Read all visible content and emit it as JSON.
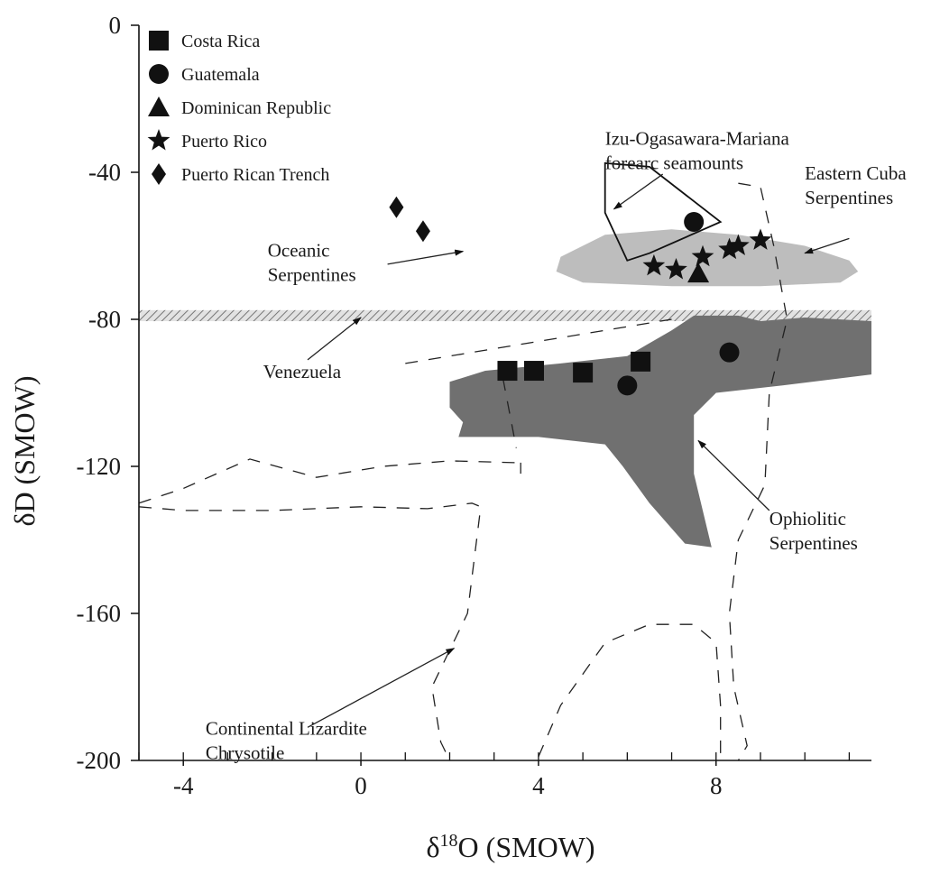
{
  "chart_data": {
    "type": "scatter",
    "title": "",
    "xlabel": {
      "prefix": "δ",
      "sup": "18",
      "suffix": "O (SMOW)"
    },
    "ylabel": "δD (SMOW)",
    "xlim": [
      -5,
      11.5
    ],
    "ylim": [
      -200,
      0
    ],
    "xticks": [
      -4,
      0,
      4,
      8
    ],
    "yticks": [
      0,
      -40,
      -80,
      -120,
      -160,
      -200
    ],
    "legend_position": "top-left",
    "series": [
      {
        "name": "Costa Rica",
        "marker": "square",
        "points": [
          [
            3.3,
            -94
          ],
          [
            3.9,
            -94
          ],
          [
            5.0,
            -94.5
          ],
          [
            6.3,
            -91.5
          ]
        ]
      },
      {
        "name": "Guatemala",
        "marker": "circle",
        "points": [
          [
            7.5,
            -53.5
          ],
          [
            6.0,
            -98
          ],
          [
            8.3,
            -89
          ]
        ]
      },
      {
        "name": "Dominican Republic",
        "marker": "triangle",
        "points": [
          [
            7.6,
            -67.5
          ]
        ]
      },
      {
        "name": "Puerto Rico",
        "marker": "star",
        "points": [
          [
            6.6,
            -65.5
          ],
          [
            7.1,
            -66.5
          ],
          [
            7.7,
            -63
          ],
          [
            8.3,
            -61
          ],
          [
            8.5,
            -60
          ],
          [
            9.0,
            -58.5
          ]
        ]
      },
      {
        "name": "Puerto Rican Trench",
        "marker": "diamond",
        "points": [
          [
            0.8,
            -49.5
          ],
          [
            1.4,
            -56
          ]
        ]
      }
    ],
    "fields": {
      "eastern_cuba": {
        "fill": "#bdbdbd",
        "points": [
          [
            4.5,
            -63
          ],
          [
            5.5,
            -57
          ],
          [
            7.0,
            -55.5
          ],
          [
            8.5,
            -57
          ],
          [
            10.0,
            -60
          ],
          [
            11.0,
            -64
          ],
          [
            11.2,
            -67
          ],
          [
            10.8,
            -70
          ],
          [
            9.0,
            -71
          ],
          [
            7.0,
            -71
          ],
          [
            5.0,
            -70
          ],
          [
            4.4,
            -67
          ]
        ]
      },
      "ophiolitic": {
        "fill": "#707070",
        "points": [
          [
            2.0,
            -97
          ],
          [
            2.8,
            -94
          ],
          [
            4.5,
            -92
          ],
          [
            6.0,
            -90
          ],
          [
            7.0,
            -83
          ],
          [
            7.5,
            -79
          ],
          [
            8.5,
            -79
          ],
          [
            9.0,
            -80.5
          ],
          [
            10.0,
            -79.5
          ],
          [
            11.5,
            -80.5
          ],
          [
            11.5,
            -95
          ],
          [
            9.5,
            -98
          ],
          [
            8.0,
            -100
          ],
          [
            7.5,
            -106
          ],
          [
            7.5,
            -122
          ],
          [
            7.9,
            -142
          ],
          [
            7.3,
            -141
          ],
          [
            6.5,
            -130
          ],
          [
            5.9,
            -120
          ],
          [
            5.5,
            -114
          ],
          [
            4.0,
            -112
          ],
          [
            2.2,
            -112
          ],
          [
            2.3,
            -108
          ],
          [
            2.0,
            -104
          ]
        ]
      },
      "izu_ogasawara": {
        "stroke": "#111",
        "points": [
          [
            5.5,
            -37.5
          ],
          [
            6.5,
            -38.5
          ],
          [
            8.1,
            -53.5
          ],
          [
            6.5,
            -62
          ],
          [
            6.0,
            -64
          ],
          [
            5.5,
            -51
          ],
          [
            5.5,
            -37.5
          ]
        ]
      },
      "venezuela_band": {
        "y": [
          -77.5,
          -80.5
        ]
      }
    },
    "dashed_outlines": [
      [
        [
          1.0,
          -92
        ],
        [
          7.0,
          -80
        ]
      ],
      [
        [
          3.2,
          -96
        ],
        [
          3.5,
          -115
        ]
      ],
      [
        [
          8.5,
          -43
        ],
        [
          9.0,
          -44
        ],
        [
          9.3,
          -60
        ],
        [
          9.6,
          -80
        ],
        [
          9.2,
          -100
        ],
        [
          9.1,
          -125
        ],
        [
          8.5,
          -140
        ],
        [
          8.3,
          -160
        ],
        [
          8.4,
          -180
        ],
        [
          8.7,
          -196
        ],
        [
          8.5,
          -200
        ]
      ],
      [
        [
          -5,
          -130
        ],
        [
          -4,
          -126
        ],
        [
          -2.5,
          -118
        ],
        [
          -1,
          -123
        ],
        [
          0.5,
          -120
        ],
        [
          2,
          -118.5
        ],
        [
          3.5,
          -119
        ]
      ],
      [
        [
          3.6,
          -119
        ],
        [
          3.6,
          -122
        ]
      ],
      [
        [
          -5,
          -131
        ],
        [
          -4,
          -132
        ],
        [
          -2,
          -132
        ],
        [
          0,
          -131
        ],
        [
          1.5,
          -131.5
        ],
        [
          2.5,
          -130
        ],
        [
          2.7,
          -131
        ],
        [
          2.4,
          -160
        ],
        [
          1.6,
          -180
        ],
        [
          1.8,
          -195
        ],
        [
          2.0,
          -200
        ]
      ],
      [
        [
          4.0,
          -199
        ],
        [
          4.5,
          -185
        ],
        [
          5.5,
          -168
        ],
        [
          6.5,
          -163
        ],
        [
          7.5,
          -163
        ],
        [
          8.0,
          -168
        ],
        [
          8.1,
          -185
        ],
        [
          8.1,
          -200
        ]
      ]
    ],
    "annotations": [
      {
        "lines": [
          "Izu-Ogasawara-Mariana",
          "forearc seamounts"
        ],
        "at": [
          5.5,
          -32.5
        ],
        "arrow": [
          [
            6.8,
            -40.5
          ],
          [
            5.7,
            -50
          ]
        ]
      },
      {
        "lines": [
          "Eastern Cuba",
          "Serpentines"
        ],
        "at": [
          10.0,
          -42
        ],
        "arrow": [
          [
            11.0,
            -58
          ],
          [
            10.0,
            -62
          ]
        ]
      },
      {
        "lines": [
          "Oceanic",
          "Serpentines"
        ],
        "at": [
          -2.1,
          -63
        ],
        "arrow": [
          [
            0.6,
            -65
          ],
          [
            2.3,
            -61.5
          ]
        ]
      },
      {
        "lines": [
          "Venezuela"
        ],
        "at": [
          -2.2,
          -96
        ],
        "arrow": [
          [
            -1.2,
            -91
          ],
          [
            0.0,
            -79.5
          ]
        ]
      },
      {
        "lines": [
          "Ophiolitic",
          "Serpentines"
        ],
        "at": [
          9.2,
          -136
        ],
        "arrow": [
          [
            9.2,
            -132
          ],
          [
            7.6,
            -113
          ]
        ]
      },
      {
        "lines": [
          "Continental Lizardite",
          "Chrysotile"
        ],
        "at": [
          -3.5,
          -193
        ],
        "arrow": [
          [
            -1.2,
            -191
          ],
          [
            2.1,
            -169.5
          ]
        ]
      }
    ]
  }
}
